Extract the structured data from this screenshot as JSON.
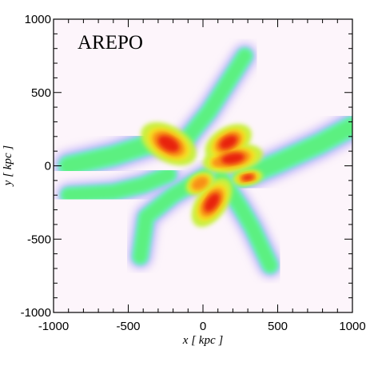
{
  "chart_data": {
    "type": "heatmap",
    "panel_label": "AREPO",
    "xlabel": "x [ kpc ]",
    "ylabel": "y [ kpc ]",
    "xlim": [
      -1000,
      1000
    ],
    "ylim": [
      -1000,
      1000
    ],
    "xticks": [
      -1000,
      -500,
      0,
      500,
      1000
    ],
    "yticks": [
      -1000,
      -500,
      0,
      500,
      1000
    ],
    "xtick_labels": [
      "-1000",
      "-500",
      "0",
      "500",
      "1000"
    ],
    "ytick_labels": [
      "-1000",
      "-500",
      "0",
      "500",
      "1000"
    ],
    "minor_tick_step": 100,
    "colormap": [
      "#fbeaf6",
      "#a8a8ff",
      "#72f0d0",
      "#5cf080",
      "#c8f040",
      "#f8e020",
      "#f89018",
      "#e82010"
    ],
    "background_color": "#fdf5fb",
    "filaments": [
      {
        "points": [
          [
            -900,
            0
          ],
          [
            -600,
            70
          ],
          [
            -320,
            160
          ],
          [
            -160,
            170
          ]
        ],
        "width": 150
      },
      {
        "points": [
          [
            -900,
            -200
          ],
          [
            -600,
            -180
          ],
          [
            -400,
            -130
          ],
          [
            -230,
            -60
          ]
        ],
        "width": 120
      },
      {
        "points": [
          [
            -420,
            -620
          ],
          [
            -380,
            -350
          ],
          [
            -200,
            -200
          ],
          [
            20,
            -70
          ]
        ],
        "width": 120
      },
      {
        "points": [
          [
            -120,
            170
          ],
          [
            40,
            370
          ],
          [
            160,
            560
          ],
          [
            280,
            750
          ]
        ],
        "width": 120
      },
      {
        "points": [
          [
            120,
            -80
          ],
          [
            250,
            -280
          ],
          [
            330,
            -420
          ],
          [
            450,
            -680
          ]
        ],
        "width": 120
      },
      {
        "points": [
          [
            260,
            -80
          ],
          [
            500,
            20
          ],
          [
            780,
            150
          ],
          [
            1000,
            270
          ]
        ],
        "width": 150
      }
    ],
    "clumps": [
      {
        "x": -230,
        "y": 150,
        "rx": 120,
        "ry": 70,
        "angle": -30,
        "level": 0.95
      },
      {
        "x": 170,
        "y": 160,
        "rx": 100,
        "ry": 60,
        "angle": 30,
        "level": 0.95
      },
      {
        "x": 200,
        "y": 50,
        "rx": 120,
        "ry": 55,
        "angle": 10,
        "level": 0.9
      },
      {
        "x": 60,
        "y": -250,
        "rx": 110,
        "ry": 60,
        "angle": 55,
        "level": 0.95
      },
      {
        "x": 300,
        "y": -80,
        "rx": 60,
        "ry": 30,
        "angle": 10,
        "level": 0.9
      },
      {
        "x": 100,
        "y": 20,
        "rx": 40,
        "ry": 25,
        "angle": 0,
        "level": 0.85
      },
      {
        "x": -20,
        "y": -120,
        "rx": 60,
        "ry": 40,
        "angle": 30,
        "level": 0.8
      }
    ]
  }
}
